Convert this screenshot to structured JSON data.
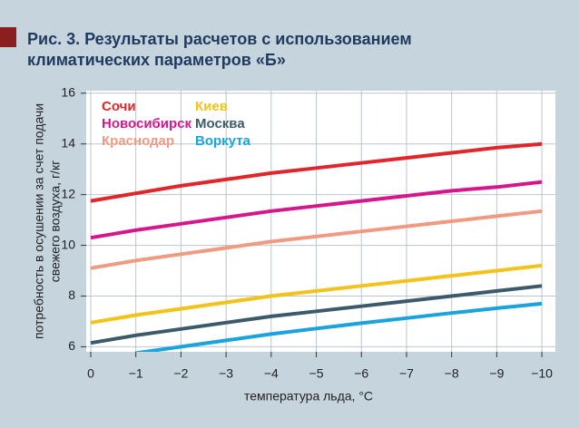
{
  "chart_data": {
    "type": "line",
    "title": [
      "Рис. 3. Результаты расчетов с использованием",
      "климатических параметров «Б»"
    ],
    "y_label": [
      "потребность в осушении за счет подачи",
      "свежего воздуха, г/кг"
    ],
    "x_label": "температура льда, °C",
    "x": [
      0,
      -1,
      -2,
      -3,
      -4,
      -5,
      -6,
      -7,
      -8,
      -9,
      -10
    ],
    "xlim": [
      0.1,
      -10.3
    ],
    "xticks": [
      0,
      {
        "value": -1,
        "label": "−1"
      },
      {
        "value": -2,
        "label": "−2"
      },
      {
        "value": -3,
        "label": "−3"
      },
      {
        "value": -4,
        "label": "−4"
      },
      {
        "value": -5,
        "label": "−5"
      },
      {
        "value": -6,
        "label": "−6"
      },
      {
        "value": -7,
        "label": "−7"
      },
      {
        "value": -8,
        "label": "−8"
      },
      {
        "value": -9,
        "label": "−9"
      },
      {
        "value": -10,
        "label": "−10"
      }
    ],
    "ylim": [
      5.8,
      16.1
    ],
    "yticks": [
      6,
      8,
      10,
      12,
      14,
      16
    ],
    "grid": true,
    "series": [
      {
        "name": "Сочи",
        "color": "#e0262b",
        "values": [
          11.75,
          12.05,
          12.35,
          12.6,
          12.85,
          13.05,
          13.25,
          13.45,
          13.65,
          13.85,
          14.0
        ]
      },
      {
        "name": "Новосибирск",
        "color": "#d6168a",
        "values": [
          10.3,
          10.6,
          10.85,
          11.1,
          11.35,
          11.55,
          11.75,
          11.95,
          12.15,
          12.3,
          12.5
        ]
      },
      {
        "name": "Краснодар",
        "color": "#f19a82",
        "values": [
          9.1,
          9.4,
          9.65,
          9.9,
          10.15,
          10.35,
          10.55,
          10.75,
          10.95,
          11.15,
          11.35
        ]
      },
      {
        "name": "Киев",
        "color": "#f2c31a",
        "values": [
          6.95,
          7.25,
          7.5,
          7.75,
          8.0,
          8.2,
          8.4,
          8.6,
          8.8,
          9.0,
          9.2
        ]
      },
      {
        "name": "Москва",
        "color": "#3c5a6a",
        "values": [
          6.15,
          6.45,
          6.7,
          6.95,
          7.2,
          7.4,
          7.6,
          7.8,
          8.0,
          8.2,
          8.4
        ]
      },
      {
        "name": "Воркута",
        "color": "#1aa3dc",
        "values": [
          null,
          5.75,
          6.0,
          6.25,
          6.5,
          6.72,
          6.93,
          7.13,
          7.33,
          7.52,
          7.7
        ]
      }
    ]
  }
}
